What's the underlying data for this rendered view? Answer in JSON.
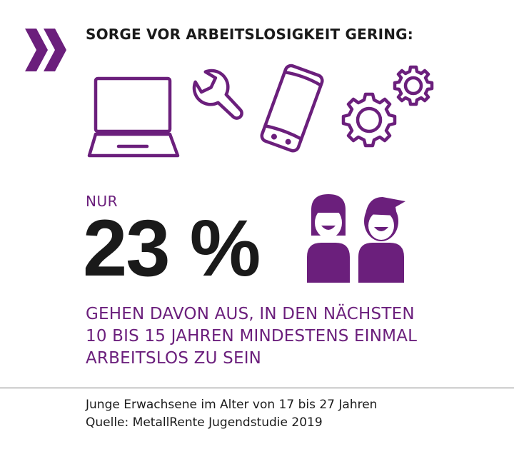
{
  "headline": "SORGE VOR ARBEITSLOSIGKEIT GERING:",
  "icons": [
    "laptop-icon",
    "wrench-icon",
    "phone-icon",
    "gears-icon",
    "people-icon"
  ],
  "stat": {
    "prefix": "NUR",
    "value": "23 %",
    "description": [
      "GEHEN DAVON AUS, IN DEN NÄCHSTEN",
      "10 BIS 15 JAHREN MINDESTENS EINMAL",
      "ARBEITSLOS ZU SEIN"
    ]
  },
  "footer": {
    "line1": "Junge Erwachsene im Alter von 17 bis 27 Jahren",
    "line2": "Quelle: MetallRente Jugendstudie 2019"
  },
  "colors": {
    "accent": "#6b1f7c",
    "text": "#1a1a1a",
    "background": "#ffffff"
  }
}
